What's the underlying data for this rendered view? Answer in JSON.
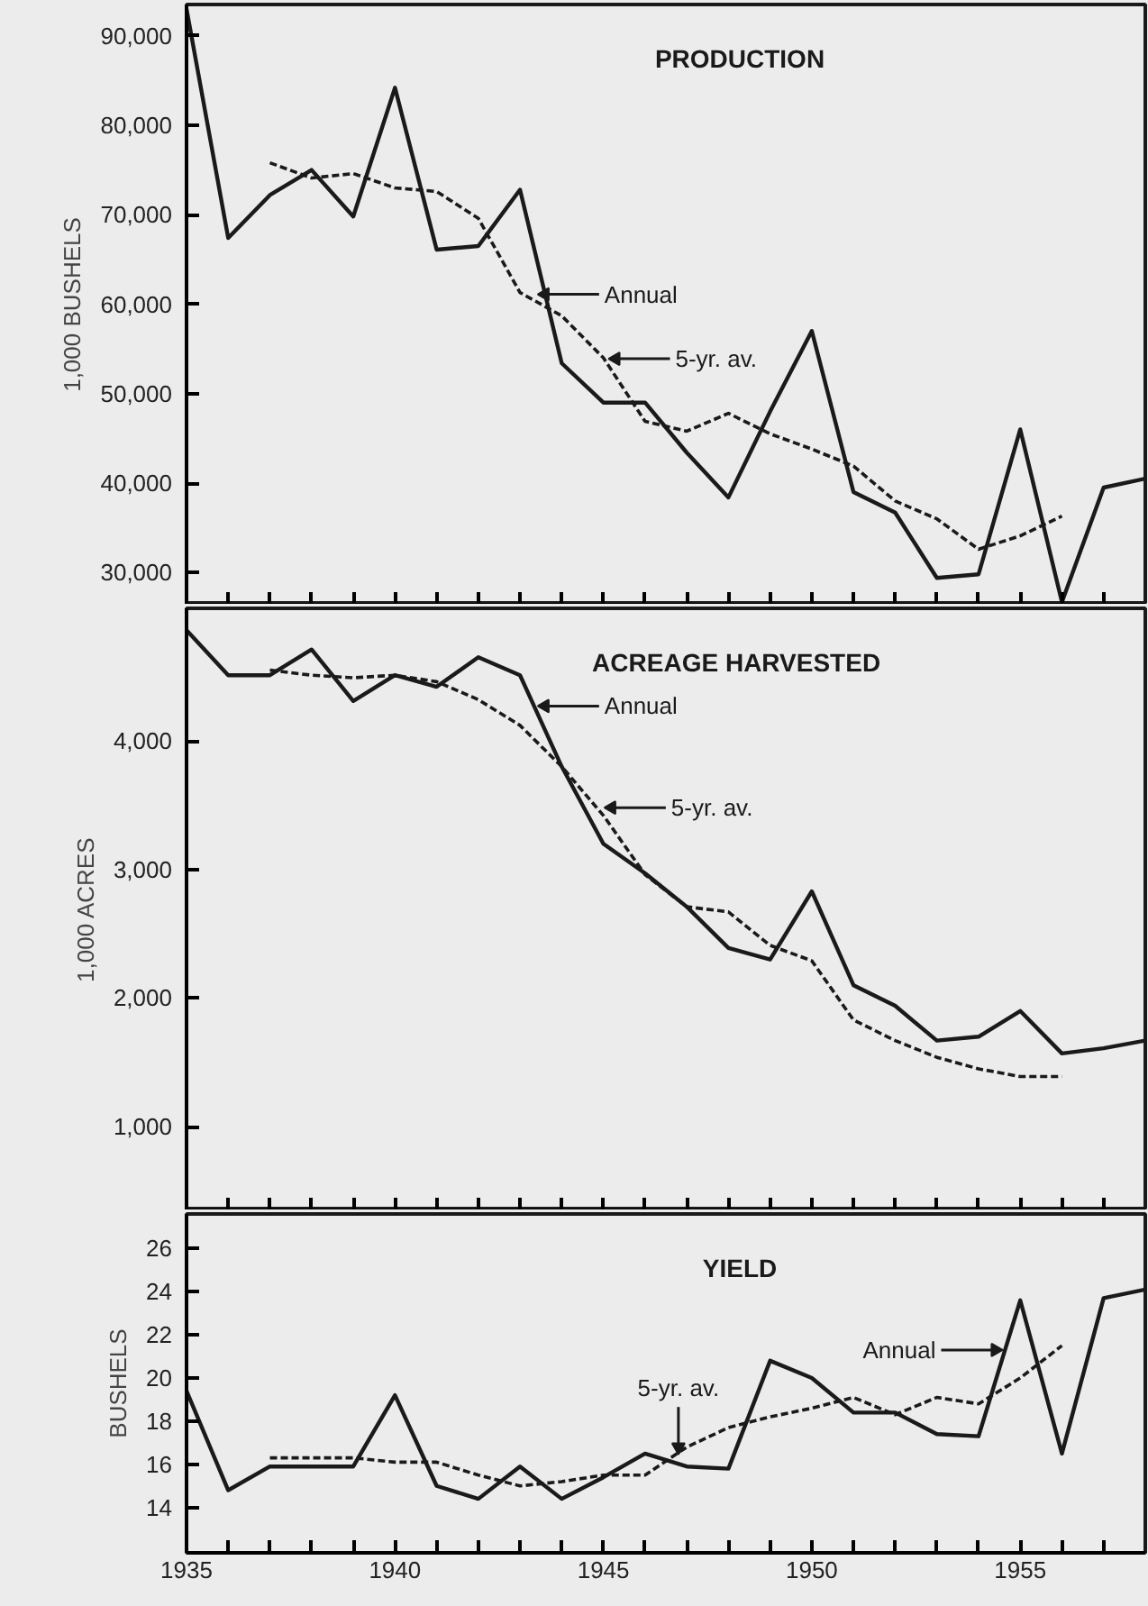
{
  "chart_data": [
    {
      "type": "line",
      "title": "PRODUCTION",
      "ylabel": "1,000 BUSHELS",
      "tick_labels": "y",
      "grid": false,
      "x": [
        1935,
        1936,
        1937,
        1938,
        1939,
        1940,
        1941,
        1942,
        1943,
        1944,
        1945,
        1946,
        1947,
        1948,
        1949,
        1950,
        1951,
        1952,
        1953,
        1954,
        1955,
        1956,
        1957,
        1958
      ],
      "series": [
        {
          "color": "#1a1a1a",
          "line_style": "solid",
          "values": [
            93000,
            67400,
            72200,
            75000,
            69800,
            84200,
            66100,
            66500,
            72800,
            53400,
            49000,
            49000,
            43400,
            38400,
            48000,
            57000,
            39000,
            36700,
            29400,
            29800,
            46000,
            26700,
            39500,
            40500
          ]
        },
        {
          "color": "#1a1a1a",
          "line_style": "dashed",
          "x": [
            1937,
            1938,
            1939,
            1940,
            1941,
            1942,
            1943,
            1944,
            1945,
            1946,
            1947,
            1948,
            1949,
            1950,
            1951,
            1952,
            1953,
            1954,
            1955,
            1956
          ],
          "values": [
            75800,
            74100,
            74600,
            73000,
            72600,
            69600,
            61300,
            58700,
            54000,
            46900,
            45800,
            47800,
            45500,
            43800,
            41900,
            38000,
            36000,
            32600,
            34100,
            36300
          ]
        }
      ],
      "xlim": [
        1935,
        1958
      ],
      "ylim": [
        26400,
        93500
      ],
      "xticks": [
        1935,
        {
          "value": 1936,
          "label": null
        },
        {
          "value": 1937,
          "label": null
        },
        {
          "value": 1938,
          "label": null
        },
        {
          "value": 1939,
          "label": null
        },
        1940,
        {
          "value": 1941,
          "label": null
        },
        {
          "value": 1942,
          "label": null
        },
        {
          "value": 1943,
          "label": null
        },
        {
          "value": 1944,
          "label": null
        },
        1945,
        {
          "value": 1946,
          "label": null
        },
        {
          "value": 1947,
          "label": null
        },
        {
          "value": 1948,
          "label": null
        },
        {
          "value": 1949,
          "label": null
        },
        1950,
        {
          "value": 1951,
          "label": null
        },
        {
          "value": 1952,
          "label": null
        },
        {
          "value": 1953,
          "label": null
        },
        {
          "value": 1954,
          "label": null
        },
        1955,
        {
          "value": 1956,
          "label": null
        },
        {
          "value": 1957,
          "label": null
        }
      ],
      "yticks": [
        {
          "value": 30000,
          "label": "30,000"
        },
        {
          "value": 40000,
          "label": "40,000"
        },
        {
          "value": 50000,
          "label": "50,000"
        },
        {
          "value": 60000,
          "label": "60,000"
        },
        {
          "value": 70000,
          "label": "70,000"
        },
        {
          "value": 80000,
          "label": "80,000"
        },
        {
          "value": 90000,
          "label": "90,000"
        }
      ],
      "annotations": [
        {
          "text": "Annual",
          "x": 1943.6,
          "y": 61100
        },
        {
          "text": "5-yr. av.",
          "x": 1945.3,
          "y": 53900
        }
      ]
    },
    {
      "type": "line",
      "title": "ACREAGE  HARVESTED",
      "ylabel": "1,000 ACRES",
      "tick_labels": "y",
      "grid": false,
      "x": [
        1935,
        1936,
        1937,
        1938,
        1939,
        1940,
        1941,
        1942,
        1943,
        1944,
        1945,
        1946,
        1947,
        1948,
        1949,
        1950,
        1951,
        1952,
        1953,
        1954,
        1955,
        1956,
        1957,
        1958
      ],
      "series": [
        {
          "color": "#1a1a1a",
          "line_style": "solid",
          "values": [
            4860,
            4510,
            4510,
            4710,
            4310,
            4510,
            4420,
            4650,
            4510,
            3800,
            3200,
            2970,
            2710,
            2390,
            2300,
            2830,
            2100,
            1940,
            1670,
            1700,
            1900,
            1570,
            1610,
            1670
          ]
        },
        {
          "color": "#1a1a1a",
          "line_style": "dashed",
          "x": [
            1937,
            1938,
            1939,
            1940,
            1941,
            1942,
            1943,
            1944,
            1945,
            1946,
            1947,
            1948,
            1949,
            1950,
            1951,
            1952,
            1953,
            1954,
            1955,
            1956
          ],
          "values": [
            4550,
            4510,
            4490,
            4510,
            4460,
            4320,
            4120,
            3800,
            3420,
            2960,
            2710,
            2670,
            2410,
            2290,
            1830,
            1670,
            1540,
            1450,
            1390,
            1390
          ]
        }
      ],
      "xlim": [
        1935,
        1958
      ],
      "ylim": [
        350,
        5030
      ],
      "xticks": [
        1935,
        {
          "value": 1936,
          "label": null
        },
        {
          "value": 1937,
          "label": null
        },
        {
          "value": 1938,
          "label": null
        },
        {
          "value": 1939,
          "label": null
        },
        1940,
        {
          "value": 1941,
          "label": null
        },
        {
          "value": 1942,
          "label": null
        },
        {
          "value": 1943,
          "label": null
        },
        {
          "value": 1944,
          "label": null
        },
        1945,
        {
          "value": 1946,
          "label": null
        },
        {
          "value": 1947,
          "label": null
        },
        {
          "value": 1948,
          "label": null
        },
        {
          "value": 1949,
          "label": null
        },
        1950,
        {
          "value": 1951,
          "label": null
        },
        {
          "value": 1952,
          "label": null
        },
        {
          "value": 1953,
          "label": null
        },
        {
          "value": 1954,
          "label": null
        },
        1955,
        {
          "value": 1956,
          "label": null
        },
        {
          "value": 1957,
          "label": null
        }
      ],
      "yticks": [
        {
          "value": 1000,
          "label": "1,000"
        },
        {
          "value": 2000,
          "label": "2,000"
        },
        {
          "value": 3000,
          "label": "3,000"
        },
        {
          "value": 4000,
          "label": "4,000"
        }
      ],
      "annotations": [
        {
          "text": "Annual",
          "x": 1943.6,
          "y": 4270
        },
        {
          "text": "5-yr. av.",
          "x": 1945.2,
          "y": 3480
        }
      ]
    },
    {
      "type": "line",
      "title": "YIELD",
      "ylabel": "BUSHELS",
      "grid": false,
      "x": [
        1935,
        1936,
        1937,
        1938,
        1939,
        1940,
        1941,
        1942,
        1943,
        1944,
        1945,
        1946,
        1947,
        1948,
        1949,
        1950,
        1951,
        1952,
        1953,
        1954,
        1955,
        1956,
        1957,
        1958
      ],
      "series": [
        {
          "color": "#1a1a1a",
          "line_style": "solid",
          "values": [
            19.4,
            14.8,
            15.9,
            15.9,
            15.9,
            19.2,
            15.0,
            14.4,
            15.9,
            14.4,
            15.4,
            16.5,
            15.9,
            15.8,
            20.8,
            20.0,
            18.4,
            18.4,
            17.4,
            17.3,
            23.6,
            16.5,
            23.7,
            24.1
          ]
        },
        {
          "color": "#1a1a1a",
          "line_style": "dashed",
          "x": [
            1937,
            1938,
            1939,
            1940,
            1941,
            1942,
            1943,
            1944,
            1945,
            1946,
            1947,
            1948,
            1949,
            1950,
            1951,
            1952,
            1953,
            1954,
            1955,
            1956
          ],
          "values": [
            16.3,
            16.3,
            16.3,
            16.1,
            16.1,
            15.5,
            15.0,
            15.2,
            15.5,
            15.5,
            16.8,
            17.7,
            18.2,
            18.6,
            19.1,
            18.3,
            19.1,
            18.8,
            20.0,
            21.5
          ]
        }
      ],
      "xlim": [
        1935,
        1958
      ],
      "ylim": [
        11.9,
        27.6
      ],
      "xticks": [
        1935,
        {
          "value": 1936,
          "label": null
        },
        {
          "value": 1937,
          "label": null
        },
        {
          "value": 1938,
          "label": null
        },
        {
          "value": 1939,
          "label": null
        },
        1940,
        {
          "value": 1941,
          "label": null
        },
        {
          "value": 1942,
          "label": null
        },
        {
          "value": 1943,
          "label": null
        },
        {
          "value": 1944,
          "label": null
        },
        1945,
        {
          "value": 1946,
          "label": null
        },
        {
          "value": 1947,
          "label": null
        },
        {
          "value": 1948,
          "label": null
        },
        {
          "value": 1949,
          "label": null
        },
        1950,
        {
          "value": 1951,
          "label": null
        },
        {
          "value": 1952,
          "label": null
        },
        {
          "value": 1953,
          "label": null
        },
        {
          "value": 1954,
          "label": null
        },
        1955,
        {
          "value": 1956,
          "label": null
        },
        {
          "value": 1957,
          "label": null
        }
      ],
      "yticks": [
        14,
        16,
        18,
        20,
        22,
        24,
        26
      ],
      "annotations": [
        {
          "text": "Annual",
          "x": 1954.4,
          "y": 21.3
        },
        {
          "text": "5-yr. av.",
          "x": 1946.8,
          "y": 16.8
        }
      ]
    }
  ]
}
